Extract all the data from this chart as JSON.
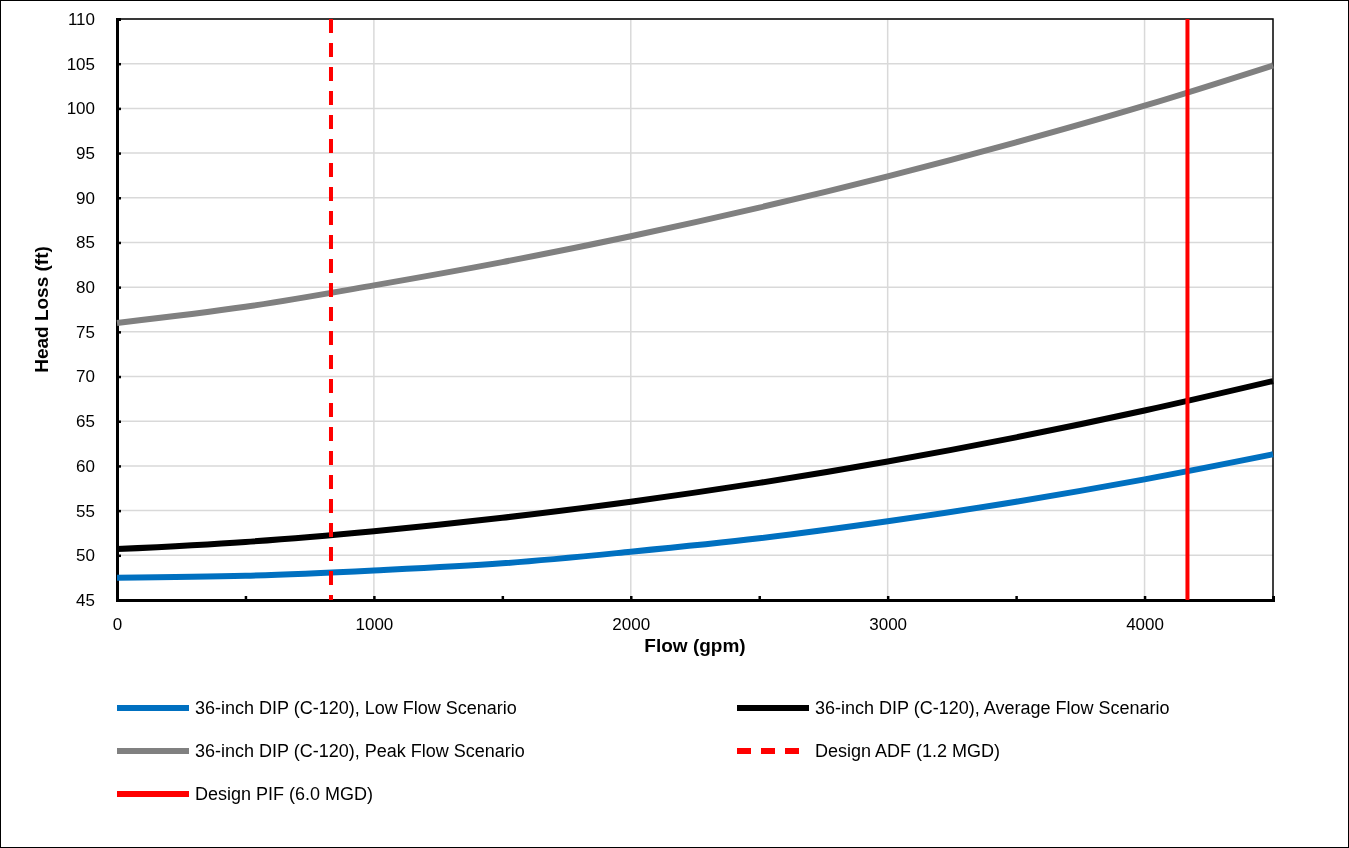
{
  "chart_data": {
    "type": "line",
    "xlabel": "Flow (gpm)",
    "ylabel": "Head Loss (ft)",
    "x": [
      0,
      500,
      1000,
      1500,
      2000,
      2500,
      3000,
      3500,
      4000,
      4500
    ],
    "xlim": [
      0,
      4500
    ],
    "xticks": [
      0,
      {
        "value": 500,
        "label": null
      },
      1000,
      {
        "value": 1500,
        "label": null
      },
      2000,
      {
        "value": 2500,
        "label": null
      },
      3000,
      {
        "value": 3500,
        "label": null
      },
      4000
    ],
    "ylim": [
      45,
      110
    ],
    "yticks": [
      45,
      50,
      55,
      60,
      65,
      70,
      75,
      80,
      85,
      90,
      95,
      100,
      105,
      110
    ],
    "grid": true,
    "legend": "bottom",
    "marker": "none",
    "series": [
      {
        "name": "36-inch DIP (C-120), Low Flow Scenario",
        "color": "#0070c0",
        "values": [
          47.5,
          47.7,
          48.3,
          49.1,
          50.4,
          51.9,
          53.8,
          56.0,
          58.5,
          61.3
        ]
      },
      {
        "name": "36-inch DIP (C-120), Average Flow Scenario",
        "color": "#000000",
        "values": [
          50.7,
          51.5,
          52.7,
          54.2,
          56.0,
          58.1,
          60.5,
          63.2,
          66.2,
          69.5
        ]
      },
      {
        "name": "36-inch DIP (C-120), Peak Flow Scenario",
        "color": "#808080",
        "values": [
          76.0,
          77.8,
          80.2,
          82.8,
          85.7,
          88.9,
          92.4,
          96.2,
          100.3,
          104.8
        ]
      }
    ],
    "ref_lines": [
      {
        "axis": "x",
        "value": 833,
        "label": "Design ADF (1.2 MGD)",
        "color": "#ff0000",
        "line_style": "dashed"
      },
      {
        "axis": "x",
        "value": 4167,
        "label": "Design PIF (6.0 MGD)",
        "color": "#ff0000",
        "line_style": "solid"
      }
    ]
  }
}
